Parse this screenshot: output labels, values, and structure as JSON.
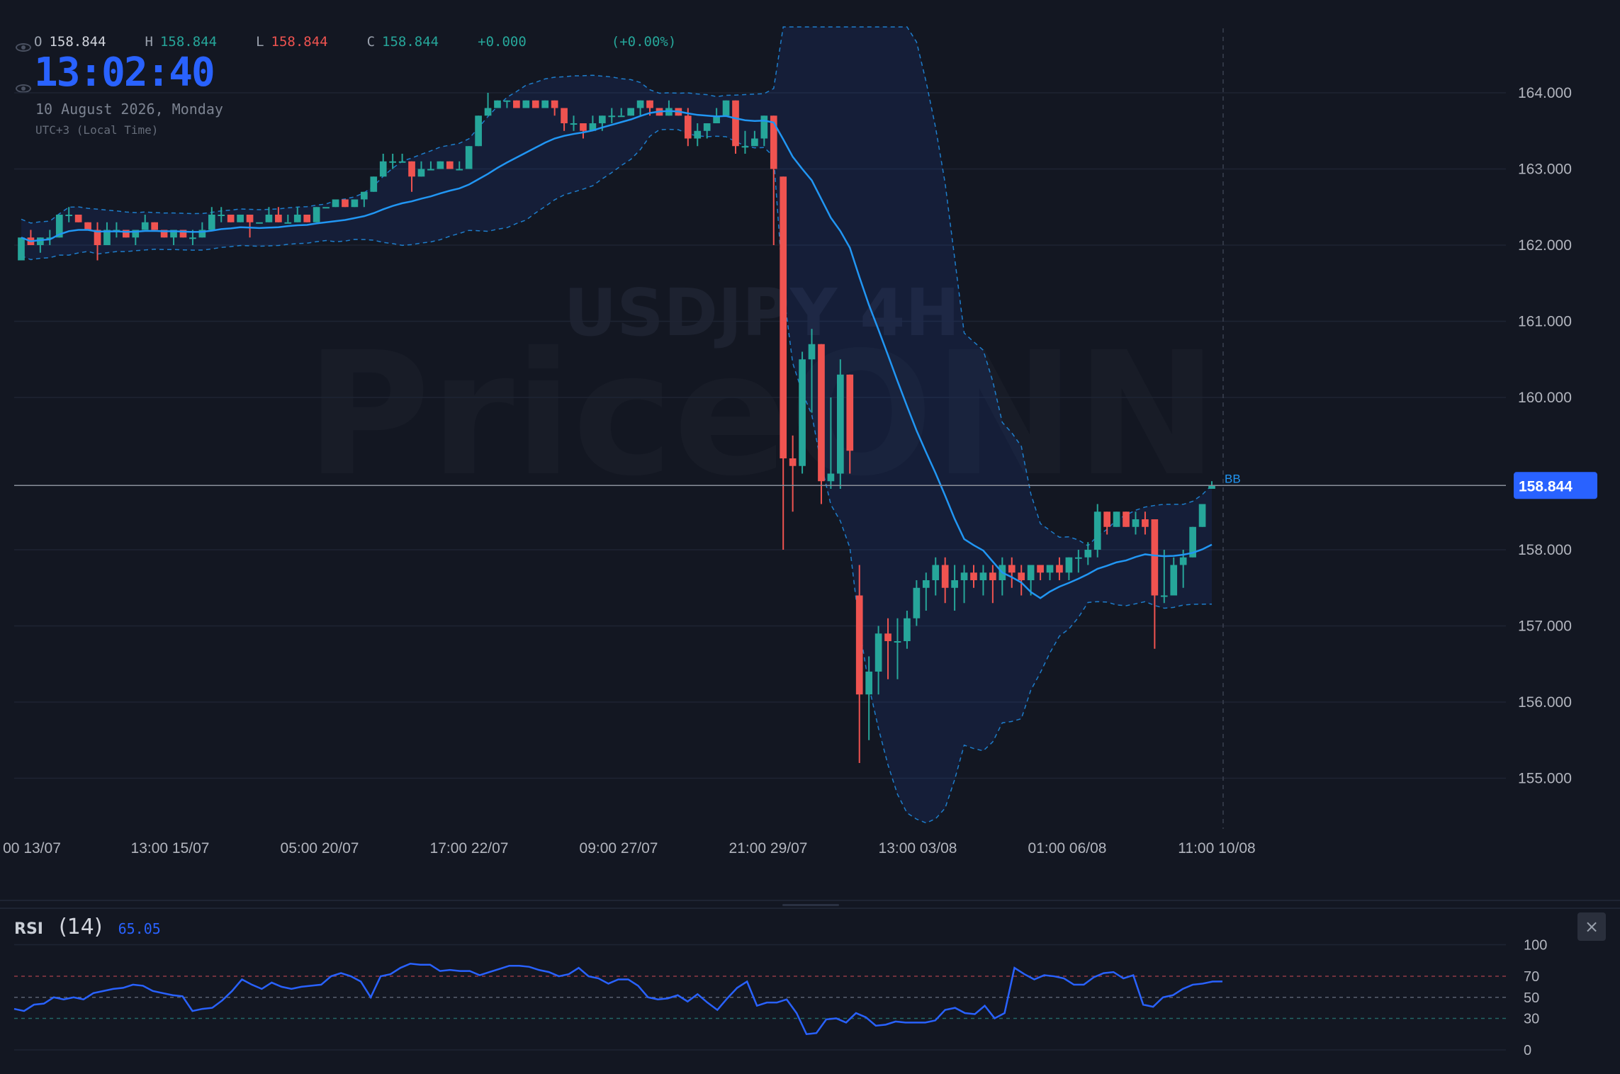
{
  "legend": {
    "open_label": "O",
    "open": "158.844",
    "high_label": "H",
    "high": "158.844",
    "low_label": "L",
    "low": "158.844",
    "close_label": "C",
    "close": "158.844",
    "change": "+0.000",
    "change_pct": "(+0.00%)"
  },
  "clock": "13:02:40",
  "date": "10 August 2026, Monday",
  "timezone": "UTC+3 (Local Time)",
  "watermark": {
    "symbol": "USDJPY 4H",
    "brand": "PriceONN"
  },
  "price_tag": "158.844",
  "bb_label": "BB",
  "rsi": {
    "name": "RSI",
    "length": "(14)",
    "value": "65.05",
    "close": "×"
  },
  "colors": {
    "background": "#131722",
    "up": "#26a69a",
    "down": "#ef5350",
    "ma": "#2196f3",
    "band": "#2962ff",
    "rsi_line": "#2962ff",
    "price_tag": "#2962ff",
    "grid": "#1e2433"
  },
  "chart_data": [
    {
      "type": "candlestick",
      "symbol": "USDJPY",
      "timeframe": "4H",
      "ylim": [
        154.3,
        164.8
      ],
      "y_ticks": [
        "164.000",
        "163.000",
        "162.000",
        "161.000",
        "160.000",
        "158.000",
        "157.000",
        "156.000",
        "155.000"
      ],
      "x_ticks": [
        "00 13/07",
        "13:00 15/07",
        "05:00 20/07",
        "17:00 22/07",
        "09:00 27/07",
        "21:00 29/07",
        "13:00 03/08",
        "01:00 06/08",
        "11:00 10/08"
      ],
      "current_price": 158.844,
      "overlays": [
        "Bollinger Bands (basis)",
        "Bollinger Bands (upper/lower)"
      ],
      "candles": [
        [
          161.8,
          162.1,
          161.8,
          162.1
        ],
        [
          162.1,
          162.2,
          162.0,
          162.0
        ],
        [
          162.0,
          162.1,
          161.9,
          162.1
        ],
        [
          162.1,
          162.2,
          162.0,
          162.1
        ],
        [
          162.1,
          162.4,
          162.1,
          162.4
        ],
        [
          162.4,
          162.5,
          162.3,
          162.4
        ],
        [
          162.4,
          162.4,
          162.3,
          162.3
        ],
        [
          162.3,
          162.3,
          162.2,
          162.2
        ],
        [
          162.2,
          162.3,
          161.8,
          162.0
        ],
        [
          162.0,
          162.3,
          162.0,
          162.2
        ],
        [
          162.2,
          162.3,
          162.1,
          162.2
        ],
        [
          162.2,
          162.2,
          162.1,
          162.1
        ],
        [
          162.1,
          162.2,
          162.0,
          162.2
        ],
        [
          162.2,
          162.4,
          162.2,
          162.3
        ],
        [
          162.3,
          162.3,
          162.2,
          162.2
        ],
        [
          162.2,
          162.2,
          162.1,
          162.1
        ],
        [
          162.1,
          162.2,
          162.0,
          162.2
        ],
        [
          162.2,
          162.2,
          162.1,
          162.1
        ],
        [
          162.1,
          162.2,
          162.0,
          162.1
        ],
        [
          162.1,
          162.3,
          162.1,
          162.2
        ],
        [
          162.2,
          162.5,
          162.2,
          162.4
        ],
        [
          162.4,
          162.5,
          162.3,
          162.4
        ],
        [
          162.4,
          162.4,
          162.3,
          162.3
        ],
        [
          162.3,
          162.4,
          162.3,
          162.4
        ],
        [
          162.4,
          162.4,
          162.1,
          162.3
        ],
        [
          162.3,
          162.3,
          162.3,
          162.3
        ],
        [
          162.3,
          162.5,
          162.3,
          162.4
        ],
        [
          162.4,
          162.5,
          162.3,
          162.3
        ],
        [
          162.3,
          162.4,
          162.3,
          162.3
        ],
        [
          162.3,
          162.5,
          162.3,
          162.4
        ],
        [
          162.4,
          162.4,
          162.3,
          162.3
        ],
        [
          162.3,
          162.5,
          162.3,
          162.5
        ],
        [
          162.5,
          162.5,
          162.5,
          162.5
        ],
        [
          162.5,
          162.6,
          162.5,
          162.6
        ],
        [
          162.6,
          162.6,
          162.5,
          162.5
        ],
        [
          162.5,
          162.6,
          162.5,
          162.6
        ],
        [
          162.6,
          162.7,
          162.5,
          162.7
        ],
        [
          162.7,
          162.9,
          162.7,
          162.9
        ],
        [
          162.9,
          163.2,
          162.9,
          163.1
        ],
        [
          163.1,
          163.2,
          163.0,
          163.1
        ],
        [
          163.1,
          163.2,
          163.1,
          163.1
        ],
        [
          163.1,
          163.1,
          162.7,
          162.9
        ],
        [
          162.9,
          163.1,
          162.9,
          163.0
        ],
        [
          163.0,
          163.1,
          163.0,
          163.0
        ],
        [
          163.0,
          163.1,
          163.0,
          163.1
        ],
        [
          163.1,
          163.1,
          163.0,
          163.0
        ],
        [
          163.0,
          163.1,
          163.0,
          163.0
        ],
        [
          163.0,
          163.3,
          163.0,
          163.3
        ],
        [
          163.3,
          163.7,
          163.3,
          163.7
        ],
        [
          163.7,
          164.0,
          163.7,
          163.8
        ],
        [
          163.8,
          163.9,
          163.8,
          163.9
        ],
        [
          163.9,
          163.9,
          163.8,
          163.9
        ],
        [
          163.9,
          163.9,
          163.8,
          163.8
        ],
        [
          163.8,
          163.9,
          163.8,
          163.9
        ],
        [
          163.9,
          163.9,
          163.8,
          163.8
        ],
        [
          163.8,
          163.9,
          163.8,
          163.9
        ],
        [
          163.9,
          163.9,
          163.7,
          163.8
        ],
        [
          163.8,
          163.8,
          163.5,
          163.6
        ],
        [
          163.6,
          163.7,
          163.5,
          163.6
        ],
        [
          163.6,
          163.6,
          163.4,
          163.5
        ],
        [
          163.5,
          163.7,
          163.5,
          163.6
        ],
        [
          163.6,
          163.7,
          163.5,
          163.7
        ],
        [
          163.7,
          163.8,
          163.6,
          163.7
        ],
        [
          163.7,
          163.8,
          163.7,
          163.7
        ],
        [
          163.7,
          163.8,
          163.7,
          163.8
        ],
        [
          163.8,
          163.9,
          163.7,
          163.9
        ],
        [
          163.9,
          163.9,
          163.7,
          163.8
        ],
        [
          163.8,
          163.8,
          163.7,
          163.7
        ],
        [
          163.7,
          163.9,
          163.7,
          163.8
        ],
        [
          163.8,
          163.8,
          163.7,
          163.7
        ],
        [
          163.7,
          163.8,
          163.3,
          163.4
        ],
        [
          163.4,
          163.6,
          163.3,
          163.5
        ],
        [
          163.5,
          163.6,
          163.4,
          163.6
        ],
        [
          163.6,
          163.8,
          163.6,
          163.7
        ],
        [
          163.7,
          163.9,
          163.7,
          163.9
        ],
        [
          163.9,
          163.9,
          163.2,
          163.3
        ],
        [
          163.3,
          163.5,
          163.2,
          163.3
        ],
        [
          163.3,
          163.5,
          163.3,
          163.4
        ],
        [
          163.4,
          163.7,
          163.3,
          163.7
        ],
        [
          163.7,
          163.7,
          162.0,
          163.0
        ],
        [
          162.9,
          162.9,
          158.0,
          159.2
        ],
        [
          159.2,
          159.5,
          158.5,
          159.1
        ],
        [
          159.1,
          160.6,
          159.0,
          160.5
        ],
        [
          160.5,
          160.9,
          159.8,
          160.7
        ],
        [
          160.7,
          160.7,
          158.6,
          158.9
        ],
        [
          158.9,
          160.0,
          158.8,
          159.0
        ],
        [
          159.0,
          160.5,
          158.8,
          160.3
        ],
        [
          160.3,
          160.3,
          159.0,
          159.3
        ],
        [
          157.4,
          157.8,
          155.2,
          156.1
        ],
        [
          156.1,
          156.6,
          155.5,
          156.4
        ],
        [
          156.4,
          157.0,
          156.1,
          156.9
        ],
        [
          156.9,
          157.1,
          156.3,
          156.8
        ],
        [
          156.8,
          157.1,
          156.3,
          156.8
        ],
        [
          156.8,
          157.2,
          156.7,
          157.1
        ],
        [
          157.1,
          157.6,
          157.0,
          157.5
        ],
        [
          157.5,
          157.7,
          157.2,
          157.6
        ],
        [
          157.6,
          157.9,
          157.4,
          157.8
        ],
        [
          157.8,
          157.9,
          157.3,
          157.5
        ],
        [
          157.5,
          157.8,
          157.2,
          157.6
        ],
        [
          157.6,
          157.8,
          157.3,
          157.7
        ],
        [
          157.7,
          157.8,
          157.5,
          157.6
        ],
        [
          157.6,
          157.8,
          157.4,
          157.7
        ],
        [
          157.7,
          157.8,
          157.3,
          157.6
        ],
        [
          157.6,
          157.9,
          157.4,
          157.8
        ],
        [
          157.8,
          157.9,
          157.5,
          157.7
        ],
        [
          157.7,
          157.8,
          157.4,
          157.6
        ],
        [
          157.6,
          157.8,
          157.4,
          157.8
        ],
        [
          157.8,
          157.8,
          157.6,
          157.7
        ],
        [
          157.7,
          157.8,
          157.6,
          157.8
        ],
        [
          157.8,
          157.9,
          157.6,
          157.7
        ],
        [
          157.7,
          157.9,
          157.6,
          157.9
        ],
        [
          157.9,
          158.0,
          157.7,
          157.9
        ],
        [
          157.9,
          158.1,
          157.8,
          158.0
        ],
        [
          158.0,
          158.6,
          157.9,
          158.5
        ],
        [
          158.5,
          158.5,
          158.2,
          158.3
        ],
        [
          158.3,
          158.5,
          158.3,
          158.5
        ],
        [
          158.5,
          158.5,
          158.3,
          158.3
        ],
        [
          158.3,
          158.5,
          158.2,
          158.4
        ],
        [
          158.4,
          158.5,
          158.2,
          158.3
        ],
        [
          158.4,
          158.4,
          156.7,
          157.4
        ],
        [
          157.4,
          158.0,
          157.3,
          157.4
        ],
        [
          157.4,
          157.9,
          157.4,
          157.8
        ],
        [
          157.8,
          158.0,
          157.5,
          157.9
        ],
        [
          157.9,
          158.3,
          157.9,
          158.3
        ],
        [
          158.3,
          158.6,
          158.3,
          158.6
        ],
        [
          158.8,
          158.9,
          158.8,
          158.844
        ]
      ]
    },
    {
      "type": "line",
      "title": "RSI",
      "ylim": [
        0,
        100
      ],
      "y_ticks": [
        "100",
        "70",
        "50",
        "30",
        "0"
      ],
      "levels": [
        70,
        50,
        30
      ],
      "series": [
        {
          "name": "RSI",
          "values": [
            39,
            37,
            43,
            44,
            50,
            48,
            50,
            48,
            54,
            56,
            58,
            59,
            62,
            61,
            56,
            54,
            52,
            51,
            37,
            39,
            40,
            47,
            56,
            67,
            62,
            58,
            64,
            60,
            58,
            60,
            61,
            62,
            70,
            73,
            70,
            65,
            50,
            70,
            72,
            78,
            82,
            81,
            81,
            75,
            76,
            75,
            75,
            71,
            74,
            77,
            80,
            80,
            79,
            76,
            74,
            70,
            72,
            78,
            70,
            68,
            63,
            67,
            67,
            61,
            50,
            48,
            49,
            52,
            46,
            53,
            45,
            38,
            49,
            59,
            65,
            42,
            45,
            45,
            48,
            35,
            15,
            16,
            29,
            30,
            26,
            35,
            31,
            23,
            24,
            27,
            26,
            26,
            26,
            28,
            38,
            40,
            35,
            34,
            42,
            30,
            35,
            78,
            72,
            67,
            71,
            70,
            68,
            62,
            62,
            69,
            73,
            74,
            68,
            71,
            43,
            41,
            50,
            52,
            58,
            62,
            63,
            65,
            65.05
          ]
        }
      ]
    }
  ]
}
